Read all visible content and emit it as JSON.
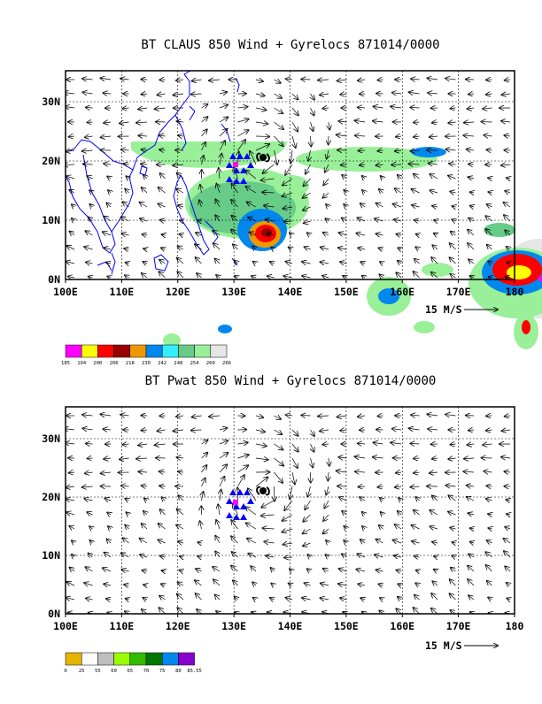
{
  "colors": {
    "coast": "#0000ff",
    "frame": "#000000",
    "grid": "#000000",
    "storm_marker": "#ff00ff",
    "track": "#0000ff"
  },
  "panels": [
    {
      "title": "BT CLAUS 850 Wind + Gyrelocs 871014/0000",
      "x_ticks": [
        "100E",
        "110E",
        "120E",
        "130E",
        "140E",
        "150E",
        "160E",
        "170E",
        "180"
      ],
      "y_ticks": [
        "0N",
        "10N",
        "20N",
        "30N"
      ],
      "vector_label": "15 M/S",
      "colorbar": {
        "labels": [
          "185",
          "194",
          "200",
          "206",
          "218",
          "230",
          "242",
          "248",
          "254",
          "260",
          "266"
        ],
        "colors": [
          "#ff00ff",
          "#ffff00",
          "#ff0000",
          "#990000",
          "#ee9900",
          "#0088ee",
          "#33eeff",
          "#66cc88",
          "#99f099",
          "#e6e6e6"
        ]
      },
      "fields": [
        {
          "fill": "#99f099",
          "cx": 160,
          "cy": 80,
          "rx": 90,
          "ry": 30
        },
        {
          "fill": "#99f099",
          "cx": 205,
          "cy": 150,
          "rx": 70,
          "ry": 40
        },
        {
          "fill": "#66cc88",
          "cx": 200,
          "cy": 155,
          "rx": 60,
          "ry": 30
        },
        {
          "fill": "#0088ee",
          "cx": 222,
          "cy": 180,
          "rx": 28,
          "ry": 24
        },
        {
          "fill": "#ee9900",
          "cx": 225,
          "cy": 185,
          "rx": 18,
          "ry": 15
        },
        {
          "fill": "#ff0000",
          "cx": 226,
          "cy": 184,
          "rx": 12,
          "ry": 10
        },
        {
          "fill": "#990000",
          "cx": 227,
          "cy": 183,
          "rx": 6,
          "ry": 5
        },
        {
          "fill": "#99f099",
          "cx": 255,
          "cy": 130,
          "rx": 20,
          "ry": 12
        },
        {
          "fill": "#99f099",
          "cx": 340,
          "cy": 100,
          "rx": 80,
          "ry": 14
        },
        {
          "fill": "#0088ee",
          "cx": 410,
          "cy": 92,
          "rx": 20,
          "ry": 6
        },
        {
          "fill": "#e6e6e6",
          "cx": 535,
          "cy": 235,
          "rx": 45,
          "ry": 45
        },
        {
          "fill": "#99f099",
          "cx": 510,
          "cy": 240,
          "rx": 55,
          "ry": 40
        },
        {
          "fill": "#0088ee",
          "cx": 510,
          "cy": 228,
          "rx": 40,
          "ry": 25
        },
        {
          "fill": "#ff0000",
          "cx": 510,
          "cy": 225,
          "rx": 28,
          "ry": 18
        },
        {
          "fill": "#ffff00",
          "cx": 512,
          "cy": 228,
          "rx": 14,
          "ry": 8
        },
        {
          "fill": "#ff00ff",
          "cx": 540,
          "cy": 235,
          "rx": 6,
          "ry": 4
        },
        {
          "fill": "#99f099",
          "cx": 365,
          "cy": 255,
          "rx": 25,
          "ry": 22
        },
        {
          "fill": "#0088ee",
          "cx": 365,
          "cy": 255,
          "rx": 12,
          "ry": 9
        },
        {
          "fill": "#99f099",
          "cx": 520,
          "cy": 295,
          "rx": 14,
          "ry": 20
        },
        {
          "fill": "#ff0000",
          "cx": 520,
          "cy": 290,
          "rx": 5,
          "ry": 8
        },
        {
          "fill": "#99f099",
          "cx": 120,
          "cy": 305,
          "rx": 10,
          "ry": 8
        },
        {
          "fill": "#0088ee",
          "cx": 180,
          "cy": 292,
          "rx": 8,
          "ry": 5
        },
        {
          "fill": "#99f099",
          "cx": 405,
          "cy": 290,
          "rx": 12,
          "ry": 7
        },
        {
          "fill": "#66cc88",
          "cx": 490,
          "cy": 180,
          "rx": 18,
          "ry": 8
        },
        {
          "fill": "#99f099",
          "cx": 420,
          "cy": 225,
          "rx": 18,
          "ry": 8
        }
      ]
    },
    {
      "title": "BT Pwat 850 Wind + Gyrelocs 871014/0000",
      "x_ticks": [
        "100E",
        "110E",
        "120E",
        "130E",
        "140E",
        "150E",
        "160E",
        "170E",
        "180"
      ],
      "y_ticks": [
        "0N",
        "10N",
        "20N",
        "30N"
      ],
      "vector_label": "15 M/S",
      "colorbar": {
        "labels": [
          "0",
          "25",
          "55",
          "60",
          "65",
          "70",
          "75",
          "80",
          "85.55"
        ],
        "colors": [
          "#e6b400",
          "#ffffff",
          "#bebebe",
          "#99ff00",
          "#33bb00",
          "#007700",
          "#0088ee",
          "#8800cc"
        ]
      },
      "fields": [
        {
          "fill": "#e6b400",
          "cx": 40,
          "cy": 35,
          "rx": 35,
          "ry": 45
        },
        {
          "fill": "#e6b400",
          "cx": 500,
          "cy": 15,
          "rx": 45,
          "ry": 18
        },
        {
          "fill": "#e6b400",
          "cx": 555,
          "cy": 35,
          "rx": 30,
          "ry": 40
        },
        {
          "fill": "#bebebe",
          "cx": 260,
          "cy": 120,
          "rx": 50,
          "ry": 75
        },
        {
          "fill": "#bebebe",
          "cx": 430,
          "cy": 180,
          "rx": 150,
          "ry": 45
        },
        {
          "fill": "#bebebe",
          "cx": 300,
          "cy": 205,
          "rx": 60,
          "ry": 25
        },
        {
          "fill": "#99ff00",
          "cx": 230,
          "cy": 105,
          "rx": 22,
          "ry": 18
        },
        {
          "fill": "#99ff00",
          "cx": 320,
          "cy": 180,
          "rx": 45,
          "ry": 15
        },
        {
          "fill": "#99ff00",
          "cx": 455,
          "cy": 190,
          "rx": 40,
          "ry": 30
        },
        {
          "fill": "#99ff00",
          "cx": 495,
          "cy": 155,
          "rx": 30,
          "ry": 18
        },
        {
          "fill": "#bebebe",
          "cx": 160,
          "cy": 205,
          "rx": 6,
          "ry": 5
        },
        {
          "fill": "#99ff00",
          "cx": 40,
          "cy": 228,
          "rx": 12,
          "ry": 5
        }
      ]
    }
  ]
}
